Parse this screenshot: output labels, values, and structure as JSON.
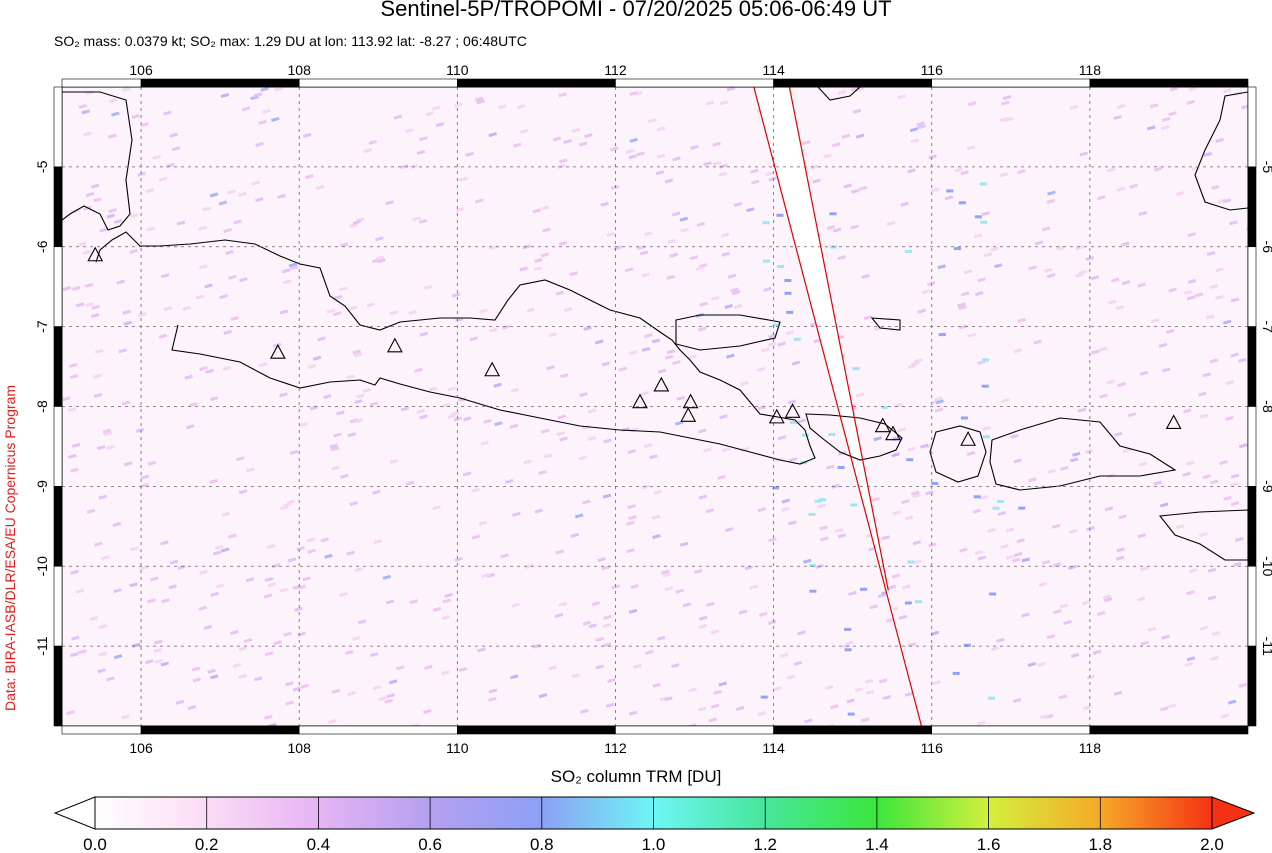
{
  "header": {
    "title": "Sentinel-5P/TROPOMI - 07/20/2025 05:06-06:49 UT",
    "stats": "SO₂ mass: 0.0379 kt; SO₂ max: 1.29 DU at lon: 113.92 lat: -8.27 ; 06:48UTC"
  },
  "credit": "Data: BIRA-IASB/DLR/ESA/EU Copernicus Program",
  "map": {
    "lon_ticks": [
      "106",
      "108",
      "110",
      "112",
      "114",
      "116",
      "118"
    ],
    "lat_ticks": [
      "-5",
      "-6",
      "-7",
      "-8",
      "-9",
      "-10",
      "-11"
    ],
    "lon_range": [
      105,
      120
    ],
    "lat_range": [
      -12,
      -4
    ],
    "volcanoes": [
      {
        "lon": 107.73,
        "lat": -7.32
      },
      {
        "lon": 109.21,
        "lat": -7.24
      },
      {
        "lon": 110.44,
        "lat": -7.54
      },
      {
        "lon": 112.31,
        "lat": -7.94
      },
      {
        "lon": 112.58,
        "lat": -7.73
      },
      {
        "lon": 112.95,
        "lat": -7.94
      },
      {
        "lon": 112.92,
        "lat": -8.11
      },
      {
        "lon": 114.04,
        "lat": -8.13
      },
      {
        "lon": 114.24,
        "lat": -8.06
      },
      {
        "lon": 115.38,
        "lat": -8.24
      },
      {
        "lon": 115.51,
        "lat": -8.34
      },
      {
        "lon": 116.46,
        "lat": -8.41
      },
      {
        "lon": 119.06,
        "lat": -8.2
      },
      {
        "lon": 105.42,
        "lat": -6.1
      }
    ],
    "swath_edges": [
      {
        "lon1": 113.75,
        "lat1": -4.0,
        "lon2": 115.87,
        "lat2": -12.0
      },
      {
        "lon1": 114.2,
        "lat1": -4.0,
        "lon2": 115.45,
        "lat2": -10.3
      }
    ],
    "colors": {
      "coast": "#000000",
      "swath": "#e00000",
      "grid": "#666666"
    }
  },
  "colorbar": {
    "title": "SO₂ column TRM [DU]",
    "ticks": [
      "0.0",
      "0.2",
      "0.4",
      "0.6",
      "0.8",
      "1.0",
      "1.2",
      "1.4",
      "1.6",
      "1.8",
      "2.0"
    ],
    "range": [
      0,
      2
    ],
    "stops": [
      "#ffffff",
      "#fbdcf5",
      "#e6b4f5",
      "#b4a0f0",
      "#8ca0f5",
      "#6ef5f5",
      "#46e69b",
      "#3ce63c",
      "#d2f03c",
      "#f5aa28",
      "#f53214"
    ]
  }
}
